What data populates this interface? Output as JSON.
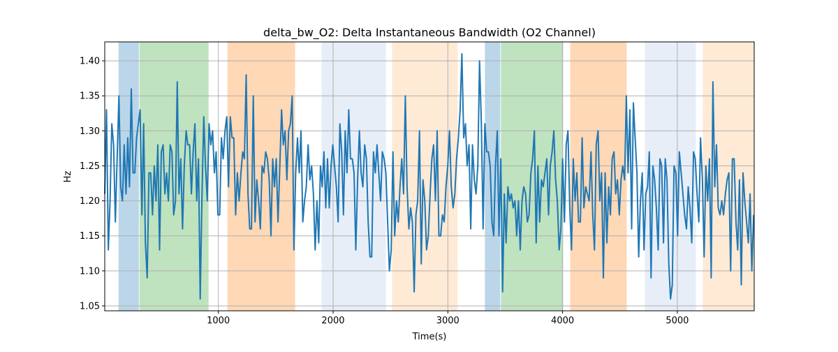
{
  "chart_data": {
    "type": "line",
    "title": "delta_bw_O2: Delta Instantaneous Bandwidth (O2 Channel)",
    "xlabel": "Time(s)",
    "ylabel": "Hz",
    "xlim": [
      10,
      5670
    ],
    "ylim": [
      1.043,
      1.427
    ],
    "grid": true,
    "xticks": [
      1000,
      2000,
      3000,
      4000,
      5000
    ],
    "xtick_labels": [
      "1000",
      "2000",
      "3000",
      "4000",
      "5000"
    ],
    "yticks": [
      1.05,
      1.1,
      1.15,
      1.2,
      1.25,
      1.3,
      1.35,
      1.4
    ],
    "ytick_labels": [
      "1.05",
      "1.10",
      "1.15",
      "1.20",
      "1.25",
      "1.30",
      "1.35",
      "1.40"
    ],
    "series_color": "#1f77b4",
    "regions": [
      {
        "start": 130,
        "end": 307,
        "color": "#1f77b4",
        "alpha": 0.3
      },
      {
        "start": 313,
        "end": 915,
        "color": "#2ca02c",
        "alpha": 0.3
      },
      {
        "start": 1079,
        "end": 1669,
        "color": "#ff7f0e",
        "alpha": 0.3
      },
      {
        "start": 1900,
        "end": 2460,
        "color": "#aec7e8",
        "alpha": 0.3
      },
      {
        "start": 2514,
        "end": 3086,
        "color": "#ffbb78",
        "alpha": 0.3
      },
      {
        "start": 3323,
        "end": 3457,
        "color": "#1f77b4",
        "alpha": 0.3
      },
      {
        "start": 3463,
        "end": 4005,
        "color": "#2ca02c",
        "alpha": 0.3
      },
      {
        "start": 4066,
        "end": 4559,
        "color": "#ff7f0e",
        "alpha": 0.3
      },
      {
        "start": 4717,
        "end": 5161,
        "color": "#aec7e8",
        "alpha": 0.3
      },
      {
        "start": 5222,
        "end": 5669,
        "color": "#ffbb78",
        "alpha": 0.3
      }
    ],
    "x_start": 10,
    "x_end": 5665,
    "values": [
      1.21,
      1.33,
      1.13,
      1.2,
      1.31,
      1.28,
      1.17,
      1.26,
      1.35,
      1.22,
      1.2,
      1.28,
      1.21,
      1.29,
      1.22,
      1.36,
      1.24,
      1.24,
      1.29,
      1.31,
      1.33,
      1.18,
      1.31,
      1.14,
      1.09,
      1.24,
      1.24,
      1.18,
      1.25,
      1.2,
      1.28,
      1.13,
      1.27,
      1.28,
      1.21,
      1.24,
      1.2,
      1.28,
      1.27,
      1.18,
      1.2,
      1.37,
      1.21,
      1.26,
      1.16,
      1.25,
      1.3,
      1.28,
      1.28,
      1.21,
      1.27,
      1.31,
      1.2,
      1.26,
      1.06,
      1.21,
      1.32,
      1.25,
      1.2,
      1.31,
      1.28,
      1.3,
      1.24,
      1.27,
      1.18,
      1.18,
      1.29,
      1.26,
      1.3,
      1.32,
      1.22,
      1.32,
      1.29,
      1.29,
      1.18,
      1.24,
      1.2,
      1.24,
      1.27,
      1.26,
      1.38,
      1.21,
      1.16,
      1.16,
      1.35,
      1.17,
      1.23,
      1.2,
      1.16,
      1.25,
      1.24,
      1.27,
      1.26,
      1.23,
      1.15,
      1.26,
      1.22,
      1.26,
      1.17,
      1.25,
      1.33,
      1.28,
      1.3,
      1.23,
      1.3,
      1.31,
      1.35,
      1.13,
      1.24,
      1.29,
      1.24,
      1.3,
      1.17,
      1.2,
      1.22,
      1.28,
      1.23,
      1.25,
      1.21,
      1.13,
      1.2,
      1.14,
      1.25,
      1.22,
      1.27,
      1.19,
      1.26,
      1.19,
      1.25,
      1.28,
      1.25,
      1.22,
      1.17,
      1.31,
      1.27,
      1.18,
      1.3,
      1.24,
      1.33,
      1.26,
      1.26,
      1.24,
      1.13,
      1.23,
      1.3,
      1.24,
      1.22,
      1.28,
      1.26,
      1.17,
      1.12,
      1.12,
      1.27,
      1.24,
      1.28,
      1.24,
      1.2,
      1.27,
      1.26,
      1.24,
      1.17,
      1.1,
      1.13,
      1.27,
      1.15,
      1.2,
      1.17,
      1.22,
      1.26,
      1.21,
      1.35,
      1.22,
      1.16,
      1.19,
      1.17,
      1.07,
      1.18,
      1.2,
      1.3,
      1.11,
      1.23,
      1.2,
      1.13,
      1.15,
      1.21,
      1.26,
      1.28,
      1.2,
      1.3,
      1.15,
      1.15,
      1.18,
      1.17,
      1.22,
      1.25,
      1.3,
      1.22,
      1.19,
      1.21,
      1.26,
      1.29,
      1.33,
      1.41,
      1.29,
      1.31,
      1.25,
      1.28,
      1.16,
      1.28,
      1.23,
      1.21,
      1.25,
      1.4,
      1.31,
      1.16,
      1.31,
      1.27,
      1.27,
      1.25,
      1.17,
      1.15,
      1.25,
      1.3,
      1.15,
      1.26,
      1.07,
      1.21,
      1.14,
      1.22,
      1.2,
      1.21,
      1.19,
      1.2,
      1.15,
      1.2,
      1.13,
      1.2,
      1.22,
      1.21,
      1.17,
      1.18,
      1.24,
      1.26,
      1.3,
      1.14,
      1.25,
      1.17,
      1.23,
      1.22,
      1.24,
      1.26,
      1.18,
      1.25,
      1.27,
      1.3,
      1.23,
      1.2,
      1.13,
      1.16,
      1.26,
      1.17,
      1.28,
      1.3,
      1.19,
      1.13,
      1.26,
      1.2,
      1.24,
      1.17,
      1.17,
      1.29,
      1.19,
      1.22,
      1.21,
      1.2,
      1.27,
      1.18,
      1.13,
      1.28,
      1.3,
      1.2,
      1.24,
      1.09,
      1.24,
      1.14,
      1.22,
      1.18,
      1.26,
      1.27,
      1.21,
      1.23,
      1.18,
      1.23,
      1.25,
      1.23,
      1.35,
      1.24,
      1.33,
      1.16,
      1.34,
      1.29,
      1.24,
      1.12,
      1.2,
      1.24,
      1.13,
      1.21,
      1.22,
      1.27,
      1.09,
      1.25,
      1.23,
      1.19,
      1.13,
      1.26,
      1.25,
      1.14,
      1.26,
      1.23,
      1.11,
      1.06,
      1.08,
      1.25,
      1.24,
      1.15,
      1.27,
      1.24,
      1.21,
      1.18,
      1.16,
      1.22,
      1.19,
      1.14,
      1.27,
      1.26,
      1.21,
      1.17,
      1.29,
      1.23,
      1.12,
      1.25,
      1.2,
      1.26,
      1.09,
      1.37,
      1.22,
      1.28,
      1.19,
      1.18,
      1.2,
      1.18,
      1.21,
      1.23,
      1.24,
      1.1,
      1.26,
      1.26,
      1.17,
      1.13,
      1.23,
      1.08,
      1.24,
      1.2,
      1.17,
      1.14,
      1.21,
      1.1,
      1.18
    ]
  }
}
